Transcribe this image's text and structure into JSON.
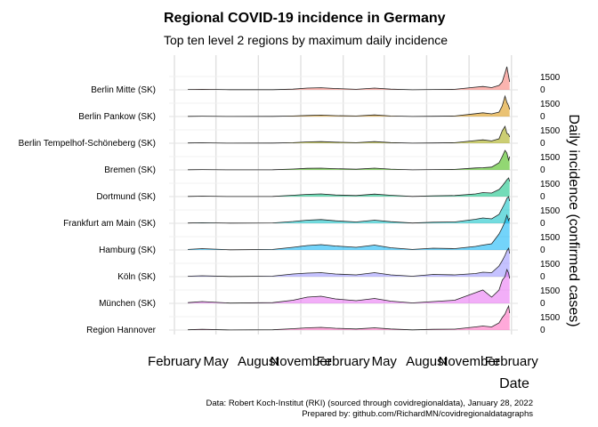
{
  "chart_data": {
    "type": "area",
    "title": "Regional COVID-19 incidence in Germany",
    "subtitle": "Top ten level 2 regions by maximum daily incidence",
    "xlabel": "Date",
    "ylabel": "Daily incidence (confirmed cases)",
    "x_ticks": [
      "February",
      "May",
      "August",
      "November",
      "February",
      "May",
      "August",
      "November",
      "February"
    ],
    "x_tick_dates": [
      "2020-02-01",
      "2020-05-01",
      "2020-08-01",
      "2020-11-01",
      "2021-02-01",
      "2021-05-01",
      "2021-08-01",
      "2021-11-01",
      "2022-02-01"
    ],
    "xlim": [
      "2020-01-01",
      "2022-02-15"
    ],
    "y_ticks": [
      0,
      1500
    ],
    "grid": true,
    "legend": "none",
    "colors": [
      "#F8766D",
      "#D89000",
      "#A3A500",
      "#39B600",
      "#00BF7D",
      "#00BFC4",
      "#00B0F6",
      "#9590FF",
      "#E76BF3",
      "#FF62BC"
    ],
    "series": [
      {
        "name": "Berlin Mitte (SK)",
        "dates": [
          "2020-03-01",
          "2020-04-01",
          "2020-06-01",
          "2020-09-01",
          "2020-10-15",
          "2020-11-15",
          "2020-12-15",
          "2021-01-15",
          "2021-03-01",
          "2021-04-10",
          "2021-05-15",
          "2021-07-01",
          "2021-08-15",
          "2021-10-01",
          "2021-11-15",
          "2021-12-01",
          "2021-12-20",
          "2022-01-05",
          "2022-01-12",
          "2022-01-18",
          "2022-01-22",
          "2022-01-26",
          "2022-01-28"
        ],
        "values": [
          40,
          60,
          15,
          20,
          80,
          200,
          240,
          150,
          60,
          200,
          80,
          10,
          40,
          60,
          300,
          380,
          250,
          500,
          900,
          1900,
          2600,
          1500,
          900
        ]
      },
      {
        "name": "Berlin Pankow (SK)",
        "dates": [
          "2020-03-01",
          "2020-04-01",
          "2020-06-01",
          "2020-09-01",
          "2020-10-15",
          "2020-11-15",
          "2020-12-15",
          "2021-01-15",
          "2021-03-01",
          "2021-04-10",
          "2021-05-15",
          "2021-07-01",
          "2021-08-15",
          "2021-10-01",
          "2021-11-15",
          "2021-12-01",
          "2021-12-20",
          "2022-01-05",
          "2022-01-12",
          "2022-01-18",
          "2022-01-22",
          "2022-01-26",
          "2022-01-28"
        ],
        "values": [
          20,
          40,
          10,
          15,
          60,
          120,
          160,
          100,
          60,
          180,
          60,
          10,
          30,
          60,
          320,
          420,
          300,
          500,
          1200,
          2300,
          1600,
          1200,
          800
        ]
      },
      {
        "name": "Berlin Tempelhof-Schöneberg (SK)",
        "dates": [
          "2020-03-01",
          "2020-04-01",
          "2020-06-01",
          "2020-09-01",
          "2020-10-15",
          "2020-11-15",
          "2020-12-15",
          "2021-01-15",
          "2021-03-01",
          "2021-04-10",
          "2021-05-15",
          "2021-07-01",
          "2021-08-15",
          "2021-10-01",
          "2021-11-15",
          "2021-12-01",
          "2021-12-20",
          "2022-01-05",
          "2022-01-12",
          "2022-01-18",
          "2022-01-22",
          "2022-01-26",
          "2022-01-28"
        ],
        "values": [
          30,
          50,
          10,
          20,
          60,
          150,
          180,
          120,
          60,
          180,
          70,
          10,
          30,
          60,
          300,
          380,
          260,
          500,
          1400,
          1900,
          1100,
          1000,
          700
        ]
      },
      {
        "name": "Bremen (SK)",
        "dates": [
          "2020-03-01",
          "2020-04-01",
          "2020-06-01",
          "2020-09-01",
          "2020-10-15",
          "2020-11-15",
          "2020-12-15",
          "2021-01-15",
          "2021-03-01",
          "2021-04-10",
          "2021-05-15",
          "2021-07-01",
          "2021-08-15",
          "2021-10-01",
          "2021-11-15",
          "2021-12-01",
          "2021-12-20",
          "2022-01-05",
          "2022-01-12",
          "2022-01-18",
          "2022-01-22",
          "2022-01-26",
          "2022-01-28"
        ],
        "values": [
          20,
          40,
          5,
          20,
          100,
          180,
          200,
          140,
          80,
          200,
          90,
          10,
          40,
          60,
          220,
          250,
          320,
          800,
          1500,
          2200,
          1900,
          1100,
          1500
        ]
      },
      {
        "name": "Dortmund (SK)",
        "dates": [
          "2020-03-01",
          "2020-04-01",
          "2020-06-01",
          "2020-09-01",
          "2020-10-15",
          "2020-11-15",
          "2020-12-15",
          "2021-01-15",
          "2021-03-01",
          "2021-04-10",
          "2021-05-15",
          "2021-07-01",
          "2021-08-15",
          "2021-10-01",
          "2021-11-15",
          "2021-12-01",
          "2021-12-20",
          "2022-01-05",
          "2022-01-12",
          "2022-01-18",
          "2022-01-22",
          "2022-01-26",
          "2022-01-28"
        ],
        "values": [
          20,
          50,
          10,
          20,
          150,
          250,
          300,
          180,
          120,
          280,
          150,
          20,
          80,
          120,
          300,
          450,
          400,
          800,
          1200,
          1600,
          1900,
          2100,
          1700
        ]
      },
      {
        "name": "Frankfurt am Main (SK)",
        "dates": [
          "2020-03-01",
          "2020-04-01",
          "2020-06-01",
          "2020-09-01",
          "2020-10-15",
          "2020-11-15",
          "2020-12-15",
          "2021-01-15",
          "2021-03-01",
          "2021-04-10",
          "2021-05-15",
          "2021-07-01",
          "2021-08-15",
          "2021-10-01",
          "2021-11-15",
          "2021-12-01",
          "2021-12-20",
          "2022-01-05",
          "2022-01-12",
          "2022-01-18",
          "2022-01-22",
          "2022-01-26",
          "2022-01-28"
        ],
        "values": [
          30,
          60,
          15,
          40,
          200,
          350,
          420,
          280,
          150,
          350,
          180,
          30,
          120,
          150,
          450,
          600,
          500,
          1000,
          1700,
          2300,
          2800,
          3000,
          2500
        ]
      },
      {
        "name": "Hamburg (SK)",
        "dates": [
          "2020-03-01",
          "2020-04-01",
          "2020-06-01",
          "2020-09-01",
          "2020-10-15",
          "2020-11-15",
          "2020-12-15",
          "2021-01-15",
          "2021-03-01",
          "2021-04-10",
          "2021-05-15",
          "2021-07-01",
          "2021-08-15",
          "2021-10-01",
          "2021-11-15",
          "2021-12-01",
          "2021-12-20",
          "2022-01-05",
          "2022-01-12",
          "2022-01-18",
          "2022-01-22",
          "2022-01-26",
          "2022-01-28"
        ],
        "values": [
          60,
          150,
          20,
          60,
          300,
          500,
          600,
          450,
          300,
          550,
          250,
          60,
          200,
          150,
          400,
          550,
          700,
          1800,
          2500,
          3200,
          3900,
          3300,
          3600
        ]
      },
      {
        "name": "Köln (SK)",
        "dates": [
          "2020-03-01",
          "2020-04-01",
          "2020-06-01",
          "2020-09-01",
          "2020-10-15",
          "2020-11-15",
          "2020-12-15",
          "2021-01-15",
          "2021-03-01",
          "2021-04-10",
          "2021-05-15",
          "2021-07-01",
          "2021-08-15",
          "2021-10-01",
          "2021-11-15",
          "2021-12-01",
          "2021-12-20",
          "2022-01-05",
          "2022-01-12",
          "2022-01-18",
          "2022-01-22",
          "2022-01-26",
          "2022-01-28"
        ],
        "values": [
          50,
          100,
          20,
          60,
          300,
          400,
          450,
          300,
          200,
          450,
          200,
          50,
          250,
          200,
          350,
          500,
          450,
          1200,
          1800,
          2400,
          2900,
          3200,
          2600
        ]
      },
      {
        "name": "München (SK)",
        "dates": [
          "2020-03-01",
          "2020-04-01",
          "2020-06-01",
          "2020-09-01",
          "2020-10-15",
          "2020-11-15",
          "2020-12-15",
          "2021-01-15",
          "2021-03-01",
          "2021-04-10",
          "2021-05-15",
          "2021-07-01",
          "2021-08-15",
          "2021-10-01",
          "2021-11-15",
          "2021-12-01",
          "2021-12-20",
          "2022-01-05",
          "2022-01-12",
          "2022-01-18",
          "2022-01-22",
          "2022-01-26",
          "2022-01-28"
        ],
        "values": [
          80,
          200,
          30,
          80,
          350,
          700,
          800,
          500,
          300,
          550,
          250,
          50,
          200,
          350,
          1200,
          1500,
          700,
          1500,
          2600,
          3000,
          3800,
          3400,
          2800
        ]
      },
      {
        "name": "Region Hannover",
        "dates": [
          "2020-03-01",
          "2020-04-01",
          "2020-06-01",
          "2020-09-01",
          "2020-10-15",
          "2020-11-15",
          "2020-12-15",
          "2021-01-15",
          "2021-03-01",
          "2021-04-10",
          "2021-05-15",
          "2021-07-01",
          "2021-08-15",
          "2021-10-01",
          "2021-11-15",
          "2021-12-01",
          "2021-12-20",
          "2022-01-05",
          "2022-01-12",
          "2022-01-18",
          "2022-01-22",
          "2022-01-26",
          "2022-01-28"
        ],
        "values": [
          30,
          80,
          10,
          30,
          150,
          250,
          300,
          200,
          120,
          250,
          120,
          20,
          80,
          100,
          350,
          450,
          350,
          800,
          1400,
          1800,
          2300,
          2700,
          1900
        ]
      }
    ],
    "caption_line1": "Data: Robert Koch-Institut (RKI) (sourced through covidregionaldata), January 28, 2022",
    "caption_line2": "Prepared by: github.com/RichardMN/covidregionaldatagraphs"
  }
}
